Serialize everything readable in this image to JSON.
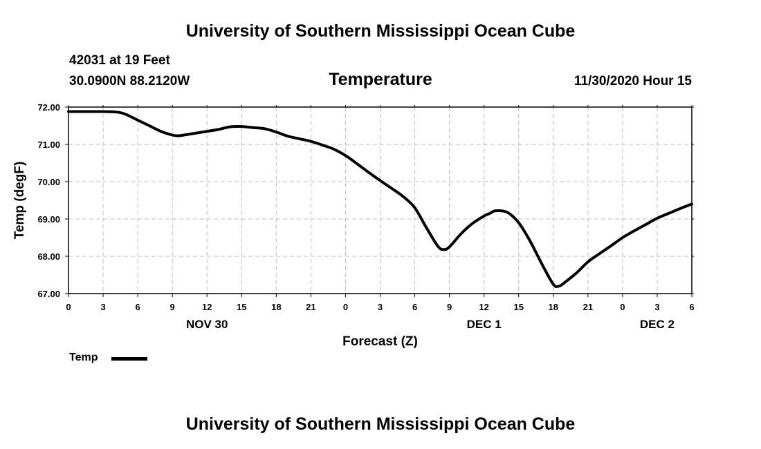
{
  "header": {
    "title_top": "University of Southern Mississippi Ocean Cube",
    "station": "42031 at 19 Feet",
    "coords": "30.0900N 88.2120W",
    "subtitle": "Temperature",
    "datetime": "11/30/2020 Hour 15"
  },
  "footer": {
    "title_bottom": "University of Southern Mississippi Ocean Cube"
  },
  "legend": {
    "label": "Temp"
  },
  "chart_data": {
    "type": "line",
    "title": "Temperature",
    "xlabel": "Forecast (Z)",
    "ylabel": "Temp (degF)",
    "xlim": [
      0,
      54
    ],
    "ylim": [
      67.0,
      72.0
    ],
    "grid": true,
    "legend_position": "bottom-left",
    "x_ticks": [
      0,
      3,
      6,
      9,
      12,
      15,
      18,
      21,
      24,
      27,
      30,
      33,
      36,
      39,
      42,
      45,
      48,
      51,
      54
    ],
    "x_tick_labels": [
      "0",
      "3",
      "6",
      "9",
      "12",
      "15",
      "18",
      "21",
      "0",
      "3",
      "6",
      "9",
      "12",
      "15",
      "18",
      "21",
      "0",
      "3",
      "6"
    ],
    "y_ticks": [
      67.0,
      68.0,
      69.0,
      70.0,
      71.0,
      72.0
    ],
    "y_tick_labels": [
      "67.00",
      "68.00",
      "69.00",
      "70.00",
      "71.00",
      "72.00"
    ],
    "date_labels": [
      {
        "x": 12,
        "label": "NOV 30"
      },
      {
        "x": 36,
        "label": "DEC 1"
      },
      {
        "x": 51,
        "label": "DEC 2"
      }
    ],
    "series": [
      {
        "name": "Temp",
        "color": "#000000",
        "x": [
          0,
          1,
          2,
          3,
          4,
          4.5,
          5,
          6,
          7,
          8,
          9,
          9.5,
          10,
          11,
          12,
          13,
          14,
          15,
          16,
          17,
          18,
          19,
          20,
          21,
          22,
          23,
          24,
          25,
          26,
          27,
          28,
          29,
          30,
          31,
          32,
          32.5,
          33,
          34,
          35,
          36,
          36.5,
          37,
          38,
          39,
          40,
          41,
          42,
          42.5,
          43,
          44,
          45,
          46,
          47,
          48,
          49,
          50,
          51,
          52,
          53,
          54
        ],
        "y": [
          71.88,
          71.88,
          71.88,
          71.88,
          71.87,
          71.85,
          71.8,
          71.65,
          71.5,
          71.35,
          71.25,
          71.23,
          71.25,
          71.3,
          71.35,
          71.4,
          71.47,
          71.48,
          71.45,
          71.42,
          71.33,
          71.22,
          71.15,
          71.08,
          70.98,
          70.87,
          70.7,
          70.48,
          70.25,
          70.03,
          69.82,
          69.6,
          69.3,
          68.77,
          68.27,
          68.18,
          68.25,
          68.6,
          68.88,
          69.08,
          69.15,
          69.22,
          69.18,
          68.9,
          68.4,
          67.8,
          67.25,
          67.2,
          67.3,
          67.55,
          67.85,
          68.07,
          68.28,
          68.5,
          68.68,
          68.85,
          69.02,
          69.15,
          69.28,
          69.4
        ]
      }
    ]
  }
}
